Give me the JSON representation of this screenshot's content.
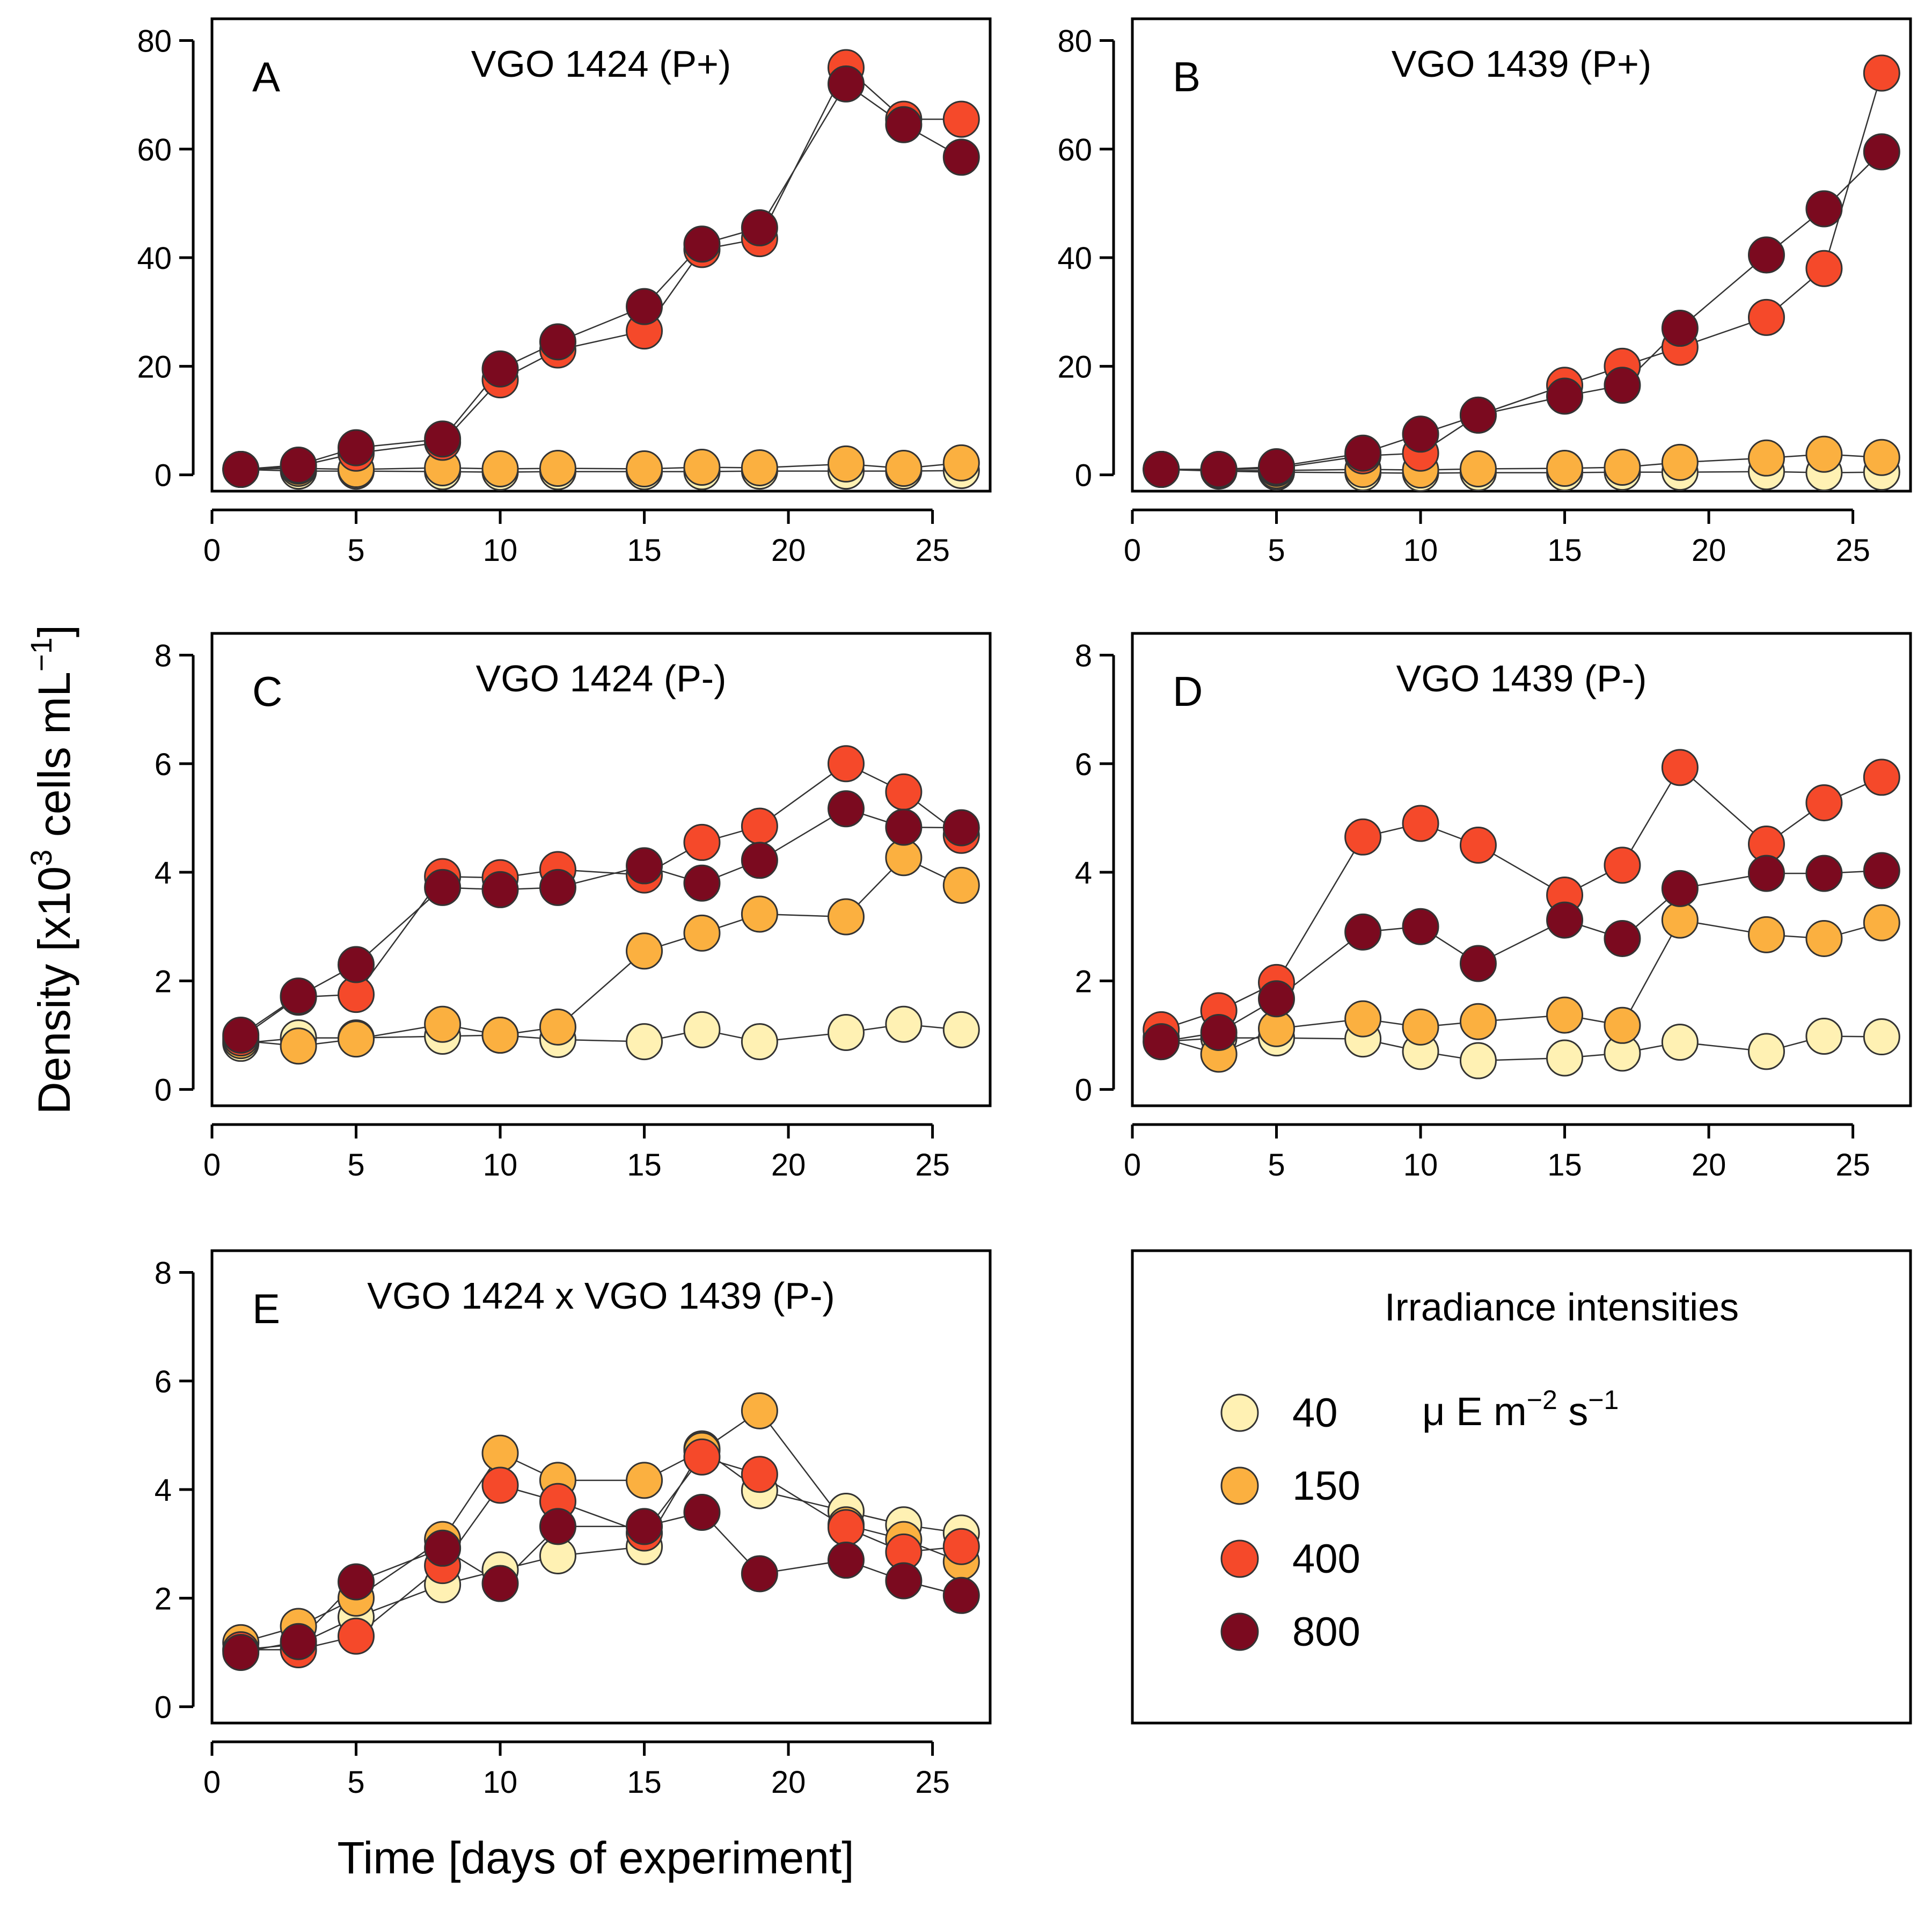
{
  "chart_data": {
    "type": "scatter",
    "y_axis_label": "Density [x10",
    "y_axis_label_exponent": "3",
    "y_axis_label_cells": " cells mL",
    "y_axis_label_exponent2": "−1",
    "y_axis_label_close": "]",
    "x_axis_label": "Time [days of experiment]",
    "x": [
      1,
      3,
      5,
      8,
      10,
      12,
      15,
      17,
      19,
      22,
      24,
      26
    ],
    "x_range": [
      0,
      27
    ],
    "x_ticks": [
      0,
      5,
      10,
      15,
      20,
      25
    ],
    "legend": {
      "title": "Irradiance intensities",
      "unit_mu": "μ",
      "unit_E": " E m",
      "unit_exp1": "−2",
      "unit_s": " s",
      "unit_exp2": "−1",
      "levels": [
        {
          "label": "40",
          "color": "#FFF1B3"
        },
        {
          "label": "150",
          "color": "#FBB040"
        },
        {
          "label": "400",
          "color": "#F5492A"
        },
        {
          "label": "800",
          "color": "#7B0A1F"
        }
      ]
    },
    "panels": [
      {
        "letter": "A",
        "title": "VGO 1424 (P+)",
        "y_range": [
          -3,
          84
        ],
        "y_ticks": [
          0,
          20,
          40,
          60,
          80
        ],
        "series": [
          {
            "name": "40",
            "values": [
              1,
              0.7,
              0.7,
              0.6,
              0.5,
              0.6,
              0.6,
              0.6,
              0.7,
              0.7,
              0.7,
              0.8
            ]
          },
          {
            "name": "150",
            "values": [
              1,
              1.2,
              1.0,
              1.3,
              1.1,
              1.2,
              1.1,
              1.4,
              1.3,
              2.0,
              1.2,
              2.2
            ]
          },
          {
            "name": "400",
            "values": [
              1,
              1.6,
              4.0,
              6.0,
              17.5,
              23.0,
              26.5,
              41.5,
              43.5,
              75.0,
              65.5,
              65.5
            ]
          },
          {
            "name": "800",
            "values": [
              1,
              1.8,
              5.0,
              6.6,
              19.5,
              24.5,
              31.0,
              42.5,
              45.5,
              72.0,
              64.5,
              58.5
            ]
          }
        ]
      },
      {
        "letter": "B",
        "title": "VGO 1439 (P+)",
        "y_range": [
          -3,
          84
        ],
        "y_ticks": [
          0,
          20,
          40,
          60,
          80
        ],
        "series": [
          {
            "name": "40",
            "values": [
              1,
              0.7,
              0.5,
              0.4,
              0.3,
              0.4,
              0.4,
              0.5,
              0.5,
              0.6,
              0.4,
              0.5
            ]
          },
          {
            "name": "150",
            "values": [
              1,
              0.8,
              0.8,
              1.0,
              0.9,
              1.1,
              1.2,
              1.4,
              2.3,
              3.1,
              3.8,
              3.2
            ]
          },
          {
            "name": "400",
            "values": [
              1,
              1.0,
              1.2,
              3.5,
              4.0,
              11.0,
              16.5,
              20.0,
              23.5,
              29.0,
              38.0,
              74.0
            ]
          },
          {
            "name": "800",
            "values": [
              1,
              1.0,
              1.5,
              4.0,
              7.5,
              11.0,
              14.5,
              16.5,
              27.0,
              40.5,
              49.0,
              59.5
            ]
          }
        ]
      },
      {
        "letter": "C",
        "title": "VGO 1424 (P-)",
        "y_range": [
          -0.3,
          8.4
        ],
        "y_ticks": [
          0,
          2,
          4,
          6,
          8
        ],
        "series": [
          {
            "name": "40",
            "values": [
              0.85,
              0.95,
              0.95,
              0.98,
              1.0,
              0.92,
              0.88,
              1.1,
              0.88,
              1.05,
              1.2,
              1.1
            ]
          },
          {
            "name": "150",
            "values": [
              0.9,
              0.8,
              0.93,
              1.2,
              1.0,
              1.15,
              2.55,
              2.88,
              3.23,
              3.18,
              4.27,
              3.76
            ]
          },
          {
            "name": "400",
            "values": [
              0.95,
              1.7,
              1.75,
              3.92,
              3.9,
              4.05,
              3.95,
              4.55,
              4.85,
              6.0,
              5.48,
              4.68
            ]
          },
          {
            "name": "800",
            "values": [
              1.0,
              1.72,
              2.3,
              3.72,
              3.68,
              3.72,
              4.12,
              3.8,
              4.22,
              5.17,
              4.83,
              4.82
            ]
          }
        ]
      },
      {
        "letter": "D",
        "title": "VGO 1439 (P-)",
        "y_range": [
          -0.3,
          8.4
        ],
        "y_ticks": [
          0,
          2,
          4,
          6,
          8
        ],
        "series": [
          {
            "name": "40",
            "values": [
              0.88,
              0.95,
              0.95,
              0.93,
              0.7,
              0.53,
              0.58,
              0.67,
              0.87,
              0.7,
              0.98,
              0.97
            ]
          },
          {
            "name": "150",
            "values": [
              0.95,
              0.65,
              1.12,
              1.3,
              1.15,
              1.25,
              1.37,
              1.18,
              3.12,
              2.85,
              2.78,
              3.07
            ]
          },
          {
            "name": "400",
            "values": [
              1.1,
              1.45,
              1.97,
              4.65,
              4.9,
              4.5,
              3.58,
              4.13,
              5.93,
              4.52,
              5.28,
              5.75
            ]
          },
          {
            "name": "800",
            "values": [
              0.88,
              1.05,
              1.67,
              2.9,
              3.0,
              2.32,
              3.12,
              2.78,
              3.7,
              3.98,
              3.98,
              4.03
            ]
          }
        ]
      },
      {
        "letter": "E",
        "title": "VGO 1424 x VGO 1439 (P-)",
        "y_range": [
          -0.3,
          8.4
        ],
        "y_ticks": [
          0,
          2,
          4,
          6,
          8
        ],
        "series": [
          {
            "name": "40",
            "values": [
              1.05,
              1.15,
              1.65,
              2.25,
              2.52,
              2.78,
              2.95,
              4.75,
              3.98,
              3.6,
              3.35,
              3.2
            ]
          },
          {
            "name": "150",
            "values": [
              1.18,
              1.48,
              2.0,
              3.08,
              4.67,
              4.17,
              4.17,
              4.72,
              5.45,
              3.35,
              3.08,
              2.67
            ]
          },
          {
            "name": "400",
            "values": [
              1.05,
              1.05,
              1.3,
              2.6,
              4.08,
              3.78,
              3.2,
              4.6,
              4.28,
              3.3,
              2.85,
              2.95
            ]
          },
          {
            "name": "800",
            "values": [
              1.0,
              1.2,
              2.3,
              2.92,
              2.27,
              3.32,
              3.32,
              3.58,
              2.45,
              2.7,
              2.32,
              2.05
            ]
          }
        ]
      }
    ]
  }
}
